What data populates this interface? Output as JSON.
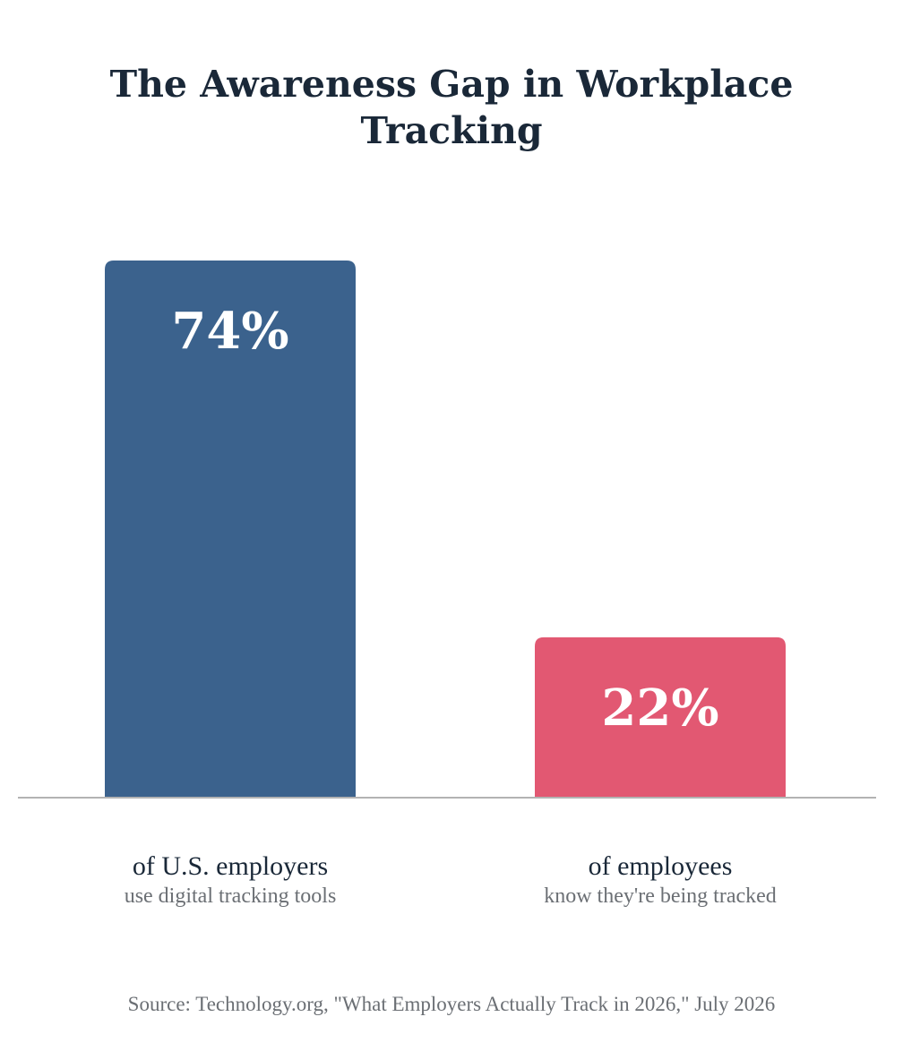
{
  "chart_data": {
    "type": "bar",
    "title": "The Awareness Gap in Workplace Tracking",
    "categories": [
      "of U.S. employers",
      "of employees"
    ],
    "subtitles": [
      "use digital tracking tools",
      "know they're being tracked"
    ],
    "values": [
      74,
      22
    ],
    "value_labels": [
      "74%",
      "22%"
    ],
    "colors": [
      "#3b628d",
      "#e25872"
    ],
    "ylim": [
      0,
      74
    ],
    "grid": false,
    "legend": "none",
    "source": "Source: Technology.org, \"What Employers Actually Track in 2026,\" July 2026"
  }
}
